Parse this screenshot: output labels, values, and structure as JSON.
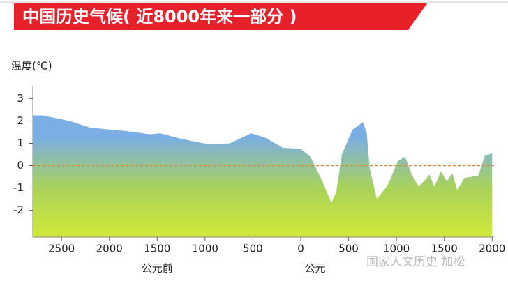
{
  "chart_data": {
    "type": "area",
    "title": "中国历史气候( 近8000年来一部分 )",
    "y_label": "温度(℃)",
    "x_group_labels": [
      {
        "value": -1500,
        "label": "公元前"
      },
      {
        "value": 150,
        "label": "公元"
      }
    ],
    "watermark": "国家人文历史  加松",
    "x": [
      -2800,
      -2700,
      -2415,
      -2200,
      -1830,
      -1575,
      -1470,
      -1250,
      -955,
      -740,
      -520,
      -370,
      -190,
      0,
      100,
      210,
      320,
      370,
      430,
      540,
      650,
      690,
      720,
      795,
      905,
      1015,
      1090,
      1160,
      1235,
      1345,
      1395,
      1465,
      1525,
      1585,
      1635,
      1710,
      1855,
      1925,
      2000
    ],
    "values": [
      2.25,
      2.25,
      2.0,
      1.7,
      1.55,
      1.4,
      1.45,
      1.2,
      0.95,
      1.0,
      1.45,
      1.25,
      0.8,
      0.75,
      0.4,
      -0.55,
      -1.65,
      -1.2,
      0.5,
      1.6,
      1.95,
      1.45,
      -0.1,
      -1.5,
      -0.9,
      0.2,
      0.4,
      -0.4,
      -0.95,
      -0.4,
      -0.95,
      -0.25,
      -0.7,
      -0.35,
      -1.1,
      -0.55,
      -0.45,
      0.45,
      0.55
    ],
    "colors": [
      "#7aaee4",
      "#a9d35a",
      "#d2e83a"
    ],
    "xlim": [
      -2800,
      2020
    ],
    "ylim": [
      -3.2,
      4.2
    ],
    "xticks": [
      {
        "value": -2500,
        "label": "2500"
      },
      {
        "value": -2000,
        "label": "2000"
      },
      {
        "value": -1500,
        "label": "1500"
      },
      {
        "value": -1000,
        "label": "1000"
      },
      {
        "value": -500,
        "label": "500"
      },
      0,
      500,
      1000,
      1500,
      2000
    ],
    "yticks": [
      -2,
      -1,
      0,
      1,
      2,
      3
    ],
    "reference_line": {
      "value": 0,
      "color": "#d9822b"
    }
  }
}
